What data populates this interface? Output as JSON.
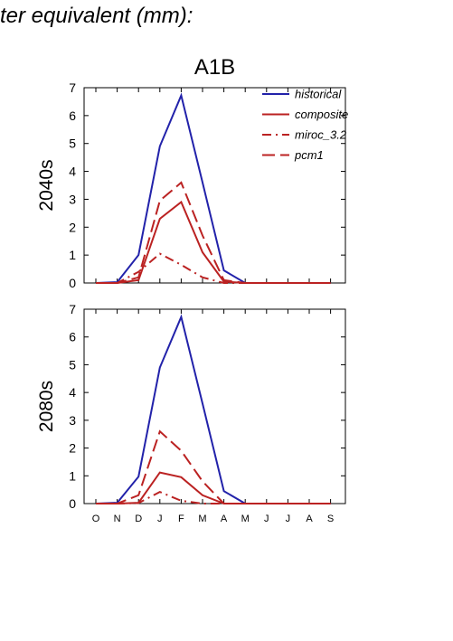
{
  "heading": "ter equivalent (mm):",
  "chart_data": {
    "type": "line",
    "title": "A1B",
    "categories": [
      "O",
      "N",
      "D",
      "J",
      "F",
      "M",
      "A",
      "M",
      "J",
      "J",
      "A",
      "S"
    ],
    "ylim": [
      0,
      7
    ],
    "yticks": [
      0,
      1,
      2,
      3,
      4,
      5,
      6,
      7
    ],
    "legend": {
      "placement": "top-right",
      "entries": [
        {
          "name": "historical",
          "color": "#2222aa",
          "dash": "solid"
        },
        {
          "name": "composite",
          "color": "#bb2222",
          "dash": "solid"
        },
        {
          "name": "miroc_3.2",
          "color": "#bb2222",
          "dash": "dashdot"
        },
        {
          "name": "pcm1",
          "color": "#bb2222",
          "dash": "dashed"
        }
      ]
    },
    "panels": [
      {
        "ylabel": "2040s",
        "series": [
          {
            "name": "historical",
            "values": [
              0,
              0.03,
              1.0,
              4.9,
              6.72,
              3.6,
              0.45,
              0,
              0,
              0,
              0,
              0
            ]
          },
          {
            "name": "composite",
            "values": [
              0,
              0,
              0.1,
              2.3,
              2.9,
              1.1,
              0.05,
              0,
              0,
              0,
              0,
              0
            ]
          },
          {
            "name": "miroc_3.2",
            "values": [
              0,
              0,
              0.4,
              1.05,
              0.65,
              0.2,
              0,
              0,
              0,
              0,
              0,
              0
            ]
          },
          {
            "name": "pcm1",
            "values": [
              0,
              0,
              0.2,
              2.95,
              3.6,
              1.7,
              0.1,
              0,
              0,
              0,
              0,
              0
            ]
          }
        ]
      },
      {
        "ylabel": "2080s",
        "series": [
          {
            "name": "historical",
            "values": [
              0,
              0.03,
              0.97,
              4.9,
              6.72,
              3.6,
              0.45,
              0,
              0,
              0,
              0,
              0
            ]
          },
          {
            "name": "composite",
            "values": [
              0,
              0,
              0.03,
              1.12,
              0.95,
              0.3,
              0,
              0,
              0,
              0,
              0,
              0
            ]
          },
          {
            "name": "miroc_3.2",
            "values": [
              0,
              0,
              0.02,
              0.42,
              0.1,
              0,
              0,
              0,
              0,
              0,
              0,
              0
            ]
          },
          {
            "name": "pcm1",
            "values": [
              0,
              0,
              0.3,
              2.6,
              1.9,
              0.8,
              0,
              0,
              0,
              0,
              0,
              0
            ]
          }
        ]
      }
    ]
  }
}
